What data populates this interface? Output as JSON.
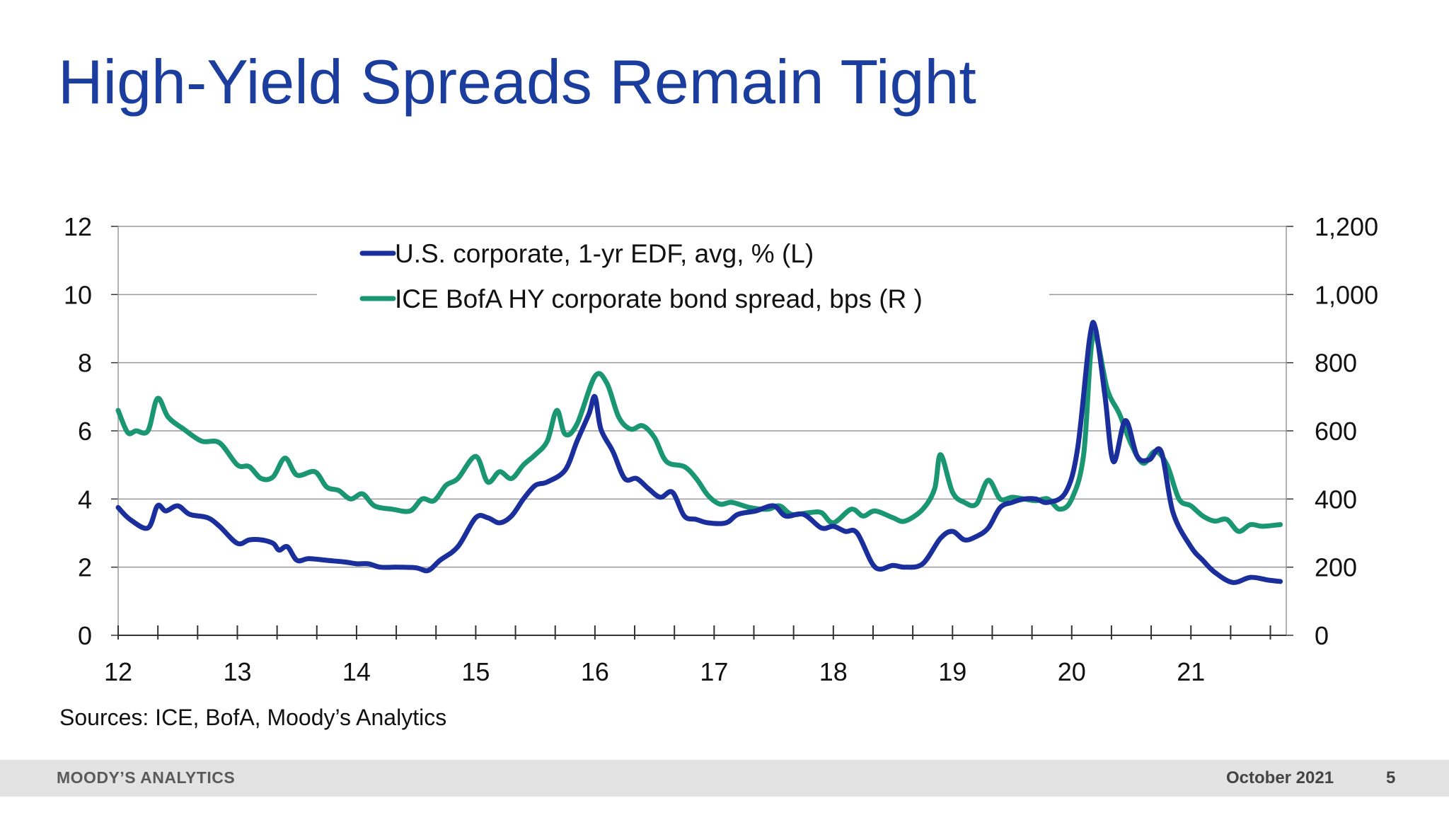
{
  "slide": {
    "title": "High-Yield Spreads Remain Tight",
    "sources": "Sources: ICE, BofA, Moody’s Analytics"
  },
  "footer": {
    "brand": "MOODY’S ANALYTICS",
    "date": "October 2021",
    "page": "5"
  },
  "colors": {
    "title": "#1a3d9e",
    "edf_series": "#1a2f9c",
    "spread_series": "#1a9673",
    "gridline": "#999999",
    "axis": "#333333"
  },
  "chart_data": {
    "type": "line",
    "title": "",
    "grid": true,
    "legend_position": "top-center",
    "x_ticks": [
      "12",
      "13",
      "14",
      "15",
      "16",
      "17",
      "18",
      "19",
      "20",
      "21"
    ],
    "xlim": [
      2012.0,
      2021.8
    ],
    "y_left": {
      "lim": [
        0,
        12
      ],
      "ticks": [
        "0",
        "2",
        "4",
        "6",
        "8",
        "10",
        "12"
      ]
    },
    "y_right": {
      "lim": [
        0,
        1200
      ],
      "ticks": [
        "0",
        "200",
        "400",
        "600",
        "800",
        "1,000",
        "1,200"
      ]
    },
    "series": [
      {
        "name": "U.S. corporate, 1-yr EDF, avg, % (L)",
        "axis": "left",
        "points": [
          [
            2012.0,
            3.75
          ],
          [
            2012.1,
            3.4
          ],
          [
            2012.25,
            3.15
          ],
          [
            2012.33,
            3.8
          ],
          [
            2012.4,
            3.65
          ],
          [
            2012.5,
            3.8
          ],
          [
            2012.6,
            3.55
          ],
          [
            2012.75,
            3.45
          ],
          [
            2012.85,
            3.2
          ],
          [
            2013.0,
            2.7
          ],
          [
            2013.1,
            2.8
          ],
          [
            2013.2,
            2.8
          ],
          [
            2013.3,
            2.7
          ],
          [
            2013.35,
            2.5
          ],
          [
            2013.42,
            2.6
          ],
          [
            2013.5,
            2.2
          ],
          [
            2013.6,
            2.25
          ],
          [
            2013.75,
            2.2
          ],
          [
            2013.9,
            2.15
          ],
          [
            2014.0,
            2.1
          ],
          [
            2014.1,
            2.1
          ],
          [
            2014.2,
            2.0
          ],
          [
            2014.35,
            2.0
          ],
          [
            2014.5,
            1.98
          ],
          [
            2014.6,
            1.9
          ],
          [
            2014.7,
            2.2
          ],
          [
            2014.85,
            2.6
          ],
          [
            2015.0,
            3.45
          ],
          [
            2015.1,
            3.45
          ],
          [
            2015.2,
            3.3
          ],
          [
            2015.3,
            3.5
          ],
          [
            2015.4,
            4.0
          ],
          [
            2015.5,
            4.4
          ],
          [
            2015.6,
            4.5
          ],
          [
            2015.75,
            4.85
          ],
          [
            2015.85,
            5.7
          ],
          [
            2015.95,
            6.5
          ],
          [
            2016.0,
            7.0
          ],
          [
            2016.05,
            6.05
          ],
          [
            2016.15,
            5.4
          ],
          [
            2016.25,
            4.6
          ],
          [
            2016.35,
            4.6
          ],
          [
            2016.45,
            4.3
          ],
          [
            2016.55,
            4.05
          ],
          [
            2016.65,
            4.2
          ],
          [
            2016.75,
            3.5
          ],
          [
            2016.85,
            3.4
          ],
          [
            2016.95,
            3.3
          ],
          [
            2017.1,
            3.3
          ],
          [
            2017.2,
            3.55
          ],
          [
            2017.35,
            3.65
          ],
          [
            2017.5,
            3.8
          ],
          [
            2017.6,
            3.5
          ],
          [
            2017.75,
            3.55
          ],
          [
            2017.9,
            3.15
          ],
          [
            2018.0,
            3.2
          ],
          [
            2018.1,
            3.05
          ],
          [
            2018.2,
            3.0
          ],
          [
            2018.35,
            2.0
          ],
          [
            2018.5,
            2.05
          ],
          [
            2018.6,
            2.0
          ],
          [
            2018.75,
            2.1
          ],
          [
            2018.9,
            2.85
          ],
          [
            2019.0,
            3.05
          ],
          [
            2019.1,
            2.8
          ],
          [
            2019.2,
            2.9
          ],
          [
            2019.3,
            3.15
          ],
          [
            2019.4,
            3.75
          ],
          [
            2019.5,
            3.9
          ],
          [
            2019.6,
            4.0
          ],
          [
            2019.7,
            4.0
          ],
          [
            2019.8,
            3.9
          ],
          [
            2019.95,
            4.2
          ],
          [
            2020.05,
            5.5
          ],
          [
            2020.15,
            8.7
          ],
          [
            2020.2,
            9.0
          ],
          [
            2020.28,
            7.0
          ],
          [
            2020.35,
            5.1
          ],
          [
            2020.45,
            6.3
          ],
          [
            2020.55,
            5.25
          ],
          [
            2020.65,
            5.15
          ],
          [
            2020.75,
            5.4
          ],
          [
            2020.85,
            3.6
          ],
          [
            2021.0,
            2.6
          ],
          [
            2021.1,
            2.2
          ],
          [
            2021.2,
            1.85
          ],
          [
            2021.35,
            1.55
          ],
          [
            2021.5,
            1.7
          ],
          [
            2021.65,
            1.62
          ],
          [
            2021.75,
            1.58
          ]
        ]
      },
      {
        "name": "ICE BofA HY corporate bond spread, bps (R )",
        "axis": "right",
        "points": [
          [
            2012.0,
            660
          ],
          [
            2012.08,
            595
          ],
          [
            2012.15,
            600
          ],
          [
            2012.25,
            600
          ],
          [
            2012.33,
            695
          ],
          [
            2012.42,
            640
          ],
          [
            2012.55,
            605
          ],
          [
            2012.7,
            570
          ],
          [
            2012.85,
            565
          ],
          [
            2013.0,
            500
          ],
          [
            2013.1,
            495
          ],
          [
            2013.2,
            460
          ],
          [
            2013.3,
            465
          ],
          [
            2013.4,
            520
          ],
          [
            2013.5,
            470
          ],
          [
            2013.65,
            480
          ],
          [
            2013.75,
            435
          ],
          [
            2013.85,
            425
          ],
          [
            2013.95,
            400
          ],
          [
            2014.05,
            415
          ],
          [
            2014.15,
            380
          ],
          [
            2014.3,
            370
          ],
          [
            2014.45,
            365
          ],
          [
            2014.55,
            400
          ],
          [
            2014.65,
            395
          ],
          [
            2014.75,
            440
          ],
          [
            2014.85,
            460
          ],
          [
            2015.0,
            525
          ],
          [
            2015.1,
            450
          ],
          [
            2015.2,
            480
          ],
          [
            2015.3,
            460
          ],
          [
            2015.4,
            500
          ],
          [
            2015.5,
            530
          ],
          [
            2015.6,
            570
          ],
          [
            2015.68,
            660
          ],
          [
            2015.75,
            590
          ],
          [
            2015.85,
            620
          ],
          [
            2016.0,
            760
          ],
          [
            2016.1,
            740
          ],
          [
            2016.2,
            640
          ],
          [
            2016.3,
            605
          ],
          [
            2016.4,
            615
          ],
          [
            2016.5,
            580
          ],
          [
            2016.6,
            510
          ],
          [
            2016.75,
            495
          ],
          [
            2016.85,
            460
          ],
          [
            2016.95,
            410
          ],
          [
            2017.05,
            385
          ],
          [
            2017.15,
            390
          ],
          [
            2017.3,
            375
          ],
          [
            2017.45,
            370
          ],
          [
            2017.55,
            380
          ],
          [
            2017.65,
            355
          ],
          [
            2017.8,
            360
          ],
          [
            2017.9,
            360
          ],
          [
            2018.0,
            330
          ],
          [
            2018.15,
            370
          ],
          [
            2018.25,
            350
          ],
          [
            2018.35,
            365
          ],
          [
            2018.5,
            345
          ],
          [
            2018.6,
            335
          ],
          [
            2018.75,
            370
          ],
          [
            2018.85,
            430
          ],
          [
            2018.9,
            530
          ],
          [
            2019.0,
            420
          ],
          [
            2019.1,
            390
          ],
          [
            2019.2,
            385
          ],
          [
            2019.3,
            455
          ],
          [
            2019.4,
            400
          ],
          [
            2019.5,
            405
          ],
          [
            2019.6,
            400
          ],
          [
            2019.7,
            395
          ],
          [
            2019.8,
            400
          ],
          [
            2019.9,
            370
          ],
          [
            2020.0,
            400
          ],
          [
            2020.1,
            530
          ],
          [
            2020.18,
            880
          ],
          [
            2020.3,
            720
          ],
          [
            2020.4,
            650
          ],
          [
            2020.5,
            560
          ],
          [
            2020.6,
            505
          ],
          [
            2020.7,
            540
          ],
          [
            2020.8,
            500
          ],
          [
            2020.9,
            400
          ],
          [
            2021.0,
            380
          ],
          [
            2021.1,
            350
          ],
          [
            2021.2,
            335
          ],
          [
            2021.3,
            340
          ],
          [
            2021.4,
            305
          ],
          [
            2021.5,
            325
          ],
          [
            2021.6,
            320
          ],
          [
            2021.75,
            325
          ]
        ]
      }
    ]
  }
}
